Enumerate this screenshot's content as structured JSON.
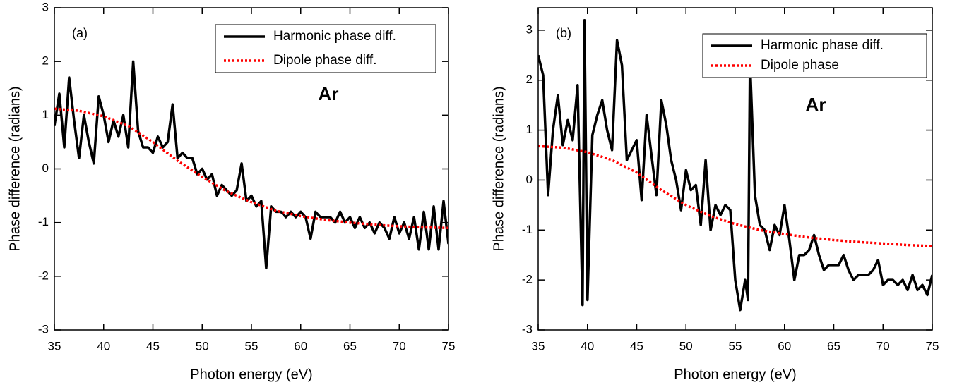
{
  "chart_data": [
    {
      "type": "line",
      "xlabel": "Photon energy (eV)",
      "ylabel": "Phase difference (radians)",
      "annotations": [
        "(a)",
        "Ar"
      ],
      "xlim": [
        35,
        75
      ],
      "ylim": [
        -3,
        3
      ],
      "xticks": [
        35,
        40,
        45,
        50,
        55,
        60,
        65,
        70,
        75
      ],
      "yticks": [
        -3,
        -2,
        -1,
        0,
        1,
        2,
        3
      ],
      "series": [
        {
          "name": "Harmonic phase diff.",
          "color": "#000000",
          "line_style": "solid",
          "x": [
            35,
            35.5,
            36,
            36.5,
            37,
            37.5,
            38,
            38.5,
            39,
            39.5,
            40,
            40.5,
            41,
            41.5,
            42,
            42.5,
            43,
            43.5,
            44,
            44.5,
            45,
            45.5,
            46,
            46.5,
            47,
            47.5,
            48,
            48.5,
            49,
            49.5,
            50,
            50.5,
            51,
            51.5,
            52,
            52.5,
            53,
            53.5,
            54,
            54.5,
            55,
            55.5,
            56,
            56.5,
            57,
            57.5,
            58,
            58.5,
            59,
            59.5,
            60,
            60.5,
            61,
            61.5,
            62,
            62.5,
            63,
            63.5,
            64,
            64.5,
            65,
            65.5,
            66,
            66.5,
            67,
            67.5,
            68,
            68.5,
            69,
            69.5,
            70,
            70.5,
            71,
            71.5,
            72,
            72.5,
            73,
            73.5,
            74,
            74.5,
            75
          ],
          "values": [
            0.8,
            1.4,
            0.4,
            1.7,
            0.9,
            0.2,
            1.0,
            0.5,
            0.1,
            1.35,
            1.0,
            0.5,
            0.9,
            0.6,
            1.0,
            0.4,
            2.0,
            0.7,
            0.4,
            0.4,
            0.3,
            0.6,
            0.4,
            0.5,
            1.2,
            0.2,
            0.3,
            0.2,
            0.2,
            -0.1,
            0.0,
            -0.2,
            -0.1,
            -0.5,
            -0.3,
            -0.4,
            -0.5,
            -0.4,
            0.1,
            -0.6,
            -0.5,
            -0.7,
            -0.6,
            -1.85,
            -0.7,
            -0.8,
            -0.8,
            -0.9,
            -0.8,
            -0.9,
            -0.8,
            -0.9,
            -1.3,
            -0.8,
            -0.9,
            -0.9,
            -0.9,
            -1.0,
            -0.8,
            -1.0,
            -0.9,
            -1.1,
            -0.9,
            -1.1,
            -1.0,
            -1.2,
            -1.0,
            -1.1,
            -1.3,
            -0.9,
            -1.2,
            -1.0,
            -1.3,
            -0.9,
            -1.5,
            -0.8,
            -1.5,
            -0.7,
            -1.5,
            -0.6,
            -1.4
          ]
        },
        {
          "name": "Dipole phase diff.",
          "color": "#ff0000",
          "line_style": "dotted",
          "x": [
            35,
            37.5,
            40,
            42.5,
            45,
            47.5,
            50,
            52.5,
            55,
            57.5,
            60,
            62.5,
            65,
            67.5,
            70,
            72.5,
            75
          ],
          "values": [
            1.12,
            1.08,
            0.98,
            0.8,
            0.5,
            0.15,
            -0.15,
            -0.42,
            -0.62,
            -0.78,
            -0.88,
            -0.95,
            -1.0,
            -1.04,
            -1.07,
            -1.09,
            -1.1
          ]
        }
      ]
    },
    {
      "type": "line",
      "xlabel": "Photon energy (eV)",
      "ylabel": "Phase difference (radians)",
      "annotations": [
        "(b)",
        "Ar"
      ],
      "xlim": [
        35,
        75
      ],
      "ylim": [
        -3,
        3.45
      ],
      "xticks": [
        35,
        40,
        45,
        50,
        55,
        60,
        65,
        70,
        75
      ],
      "yticks": [
        -3,
        -2,
        -1,
        0,
        1,
        2,
        3
      ],
      "series": [
        {
          "name": "Harmonic phase diff.",
          "color": "#000000",
          "line_style": "solid",
          "x": [
            35,
            35.5,
            36,
            36.5,
            37,
            37.5,
            38,
            38.5,
            39,
            39.5,
            39.7,
            40,
            40.5,
            41,
            41.5,
            42,
            42.5,
            43,
            43.5,
            44,
            44.5,
            45,
            45.5,
            46,
            46.5,
            47,
            47.5,
            48,
            48.5,
            49,
            49.5,
            50,
            50.5,
            51,
            51.5,
            52,
            52.5,
            53,
            53.5,
            54,
            54.5,
            55,
            55.5,
            56,
            56.3,
            56.5,
            57,
            57.5,
            58,
            58.5,
            59,
            59.5,
            60,
            60.5,
            61,
            61.5,
            62,
            62.5,
            63,
            63.5,
            64,
            64.5,
            65,
            65.5,
            66,
            66.5,
            67,
            67.5,
            68,
            68.5,
            69,
            69.5,
            70,
            70.5,
            71,
            71.5,
            72,
            72.5,
            73,
            73.5,
            74,
            74.5,
            75
          ],
          "values": [
            2.5,
            2.1,
            -0.3,
            1.0,
            1.7,
            0.7,
            1.2,
            0.8,
            1.9,
            -2.5,
            3.2,
            -2.4,
            0.9,
            1.3,
            1.6,
            1.0,
            0.6,
            2.8,
            2.3,
            0.4,
            0.6,
            0.8,
            -0.4,
            1.3,
            0.5,
            -0.3,
            1.6,
            1.1,
            0.4,
            0.0,
            -0.6,
            0.2,
            -0.2,
            -0.1,
            -0.9,
            0.4,
            -1.0,
            -0.5,
            -0.7,
            -0.5,
            -0.6,
            -2.0,
            -2.6,
            -2.0,
            -2.4,
            2.4,
            -0.3,
            -0.9,
            -1.0,
            -1.4,
            -0.9,
            -1.1,
            -0.5,
            -1.2,
            -2.0,
            -1.5,
            -1.5,
            -1.4,
            -1.1,
            -1.5,
            -1.8,
            -1.7,
            -1.7,
            -1.7,
            -1.5,
            -1.8,
            -2.0,
            -1.9,
            -1.9,
            -1.9,
            -1.8,
            -1.6,
            -2.1,
            -2.0,
            -2.0,
            -2.1,
            -2.0,
            -2.2,
            -1.9,
            -2.2,
            -2.1,
            -2.3,
            -1.9
          ]
        },
        {
          "name": "Dipole phase",
          "color": "#ff0000",
          "line_style": "dotted",
          "x": [
            35,
            37.5,
            40,
            42.5,
            45,
            47.5,
            50,
            52.5,
            55,
            57.5,
            60,
            62.5,
            65,
            67.5,
            70,
            72.5,
            75
          ],
          "values": [
            0.68,
            0.65,
            0.56,
            0.4,
            0.15,
            -0.2,
            -0.5,
            -0.72,
            -0.88,
            -1.0,
            -1.08,
            -1.15,
            -1.2,
            -1.24,
            -1.27,
            -1.3,
            -1.32
          ]
        }
      ]
    }
  ]
}
